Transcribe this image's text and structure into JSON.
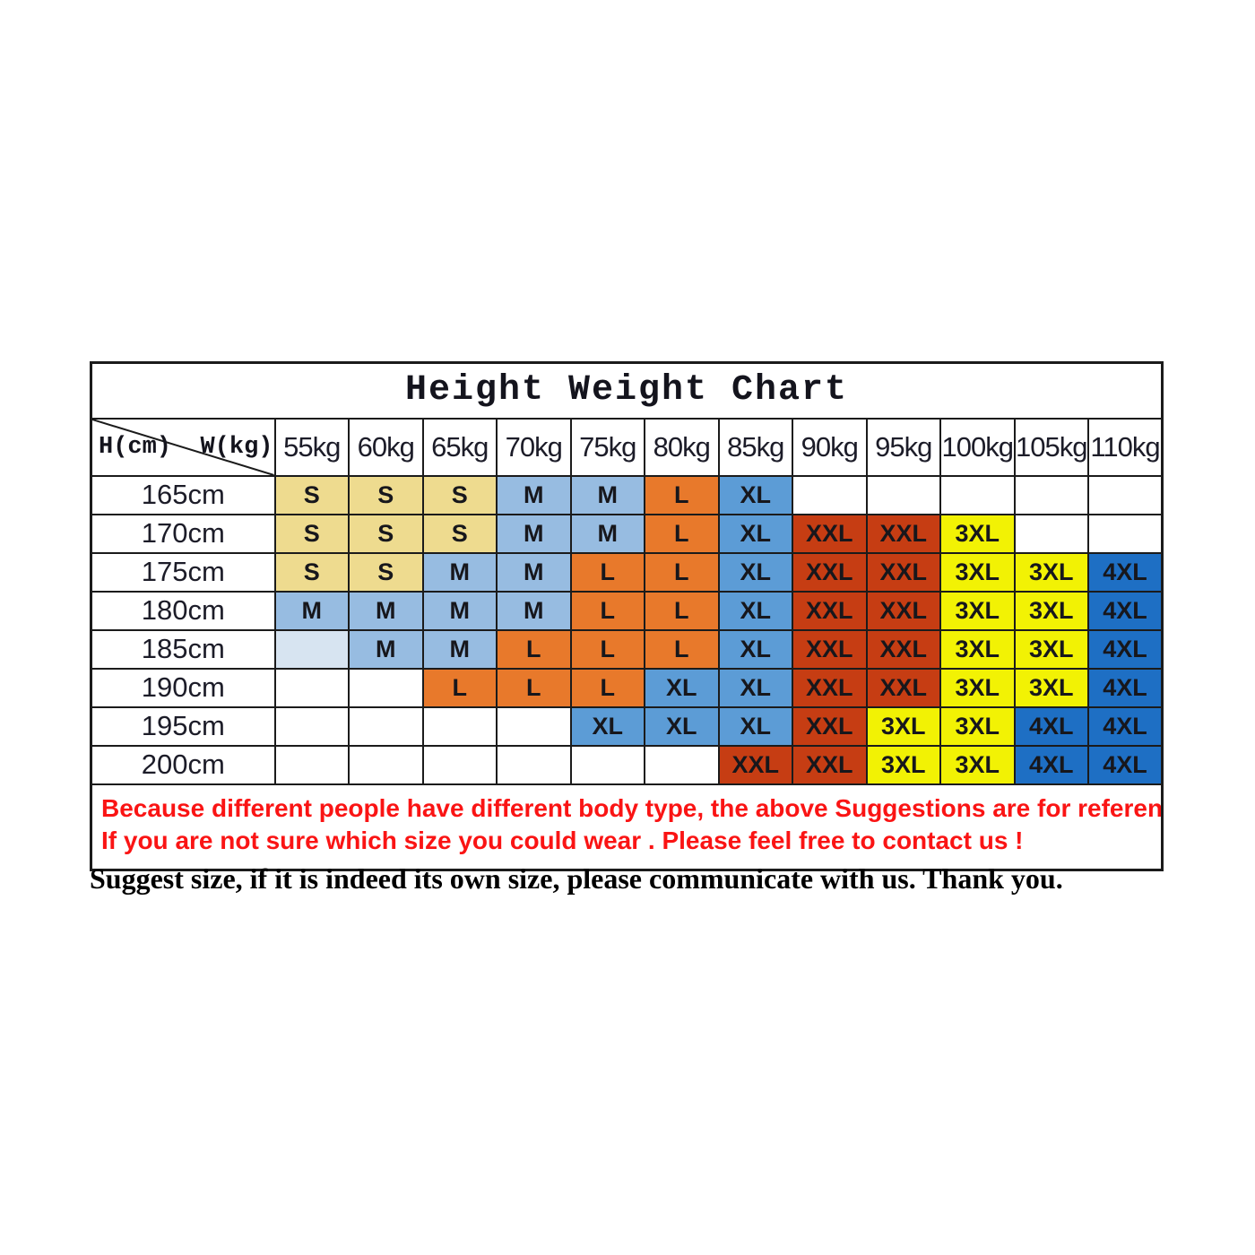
{
  "chart_data": {
    "type": "table",
    "title": "Height Weight Chart",
    "row_axis_label": "H(cm)",
    "col_axis_label": "W(kg)",
    "columns": [
      "55kg",
      "60kg",
      "65kg",
      "70kg",
      "75kg",
      "80kg",
      "85kg",
      "90kg",
      "95kg",
      "100kg",
      "105kg",
      "110kg"
    ],
    "rows": [
      {
        "label": "165cm",
        "cells": [
          "S",
          "S",
          "S",
          "M",
          "M",
          "L",
          "XL",
          "",
          "",
          "",
          "",
          ""
        ]
      },
      {
        "label": "170cm",
        "cells": [
          "S",
          "S",
          "S",
          "M",
          "M",
          "L",
          "XL",
          "XXL",
          "XXL",
          "3XL",
          "",
          ""
        ]
      },
      {
        "label": "175cm",
        "cells": [
          "S",
          "S",
          "M",
          "M",
          "L",
          "L",
          "XL",
          "XXL",
          "XXL",
          "3XL",
          "3XL",
          "4XL"
        ]
      },
      {
        "label": "180cm",
        "cells": [
          "M",
          "M",
          "M",
          "M",
          "L",
          "L",
          "XL",
          "XXL",
          "XXL",
          "3XL",
          "3XL",
          "4XL"
        ]
      },
      {
        "label": "185cm",
        "cells": [
          {
            "text": "",
            "bg": "#D7E4F1"
          },
          "M",
          "M",
          "L",
          "L",
          "L",
          "XL",
          "XXL",
          "XXL",
          "3XL",
          "3XL",
          "4XL"
        ]
      },
      {
        "label": "190cm",
        "cells": [
          "",
          "",
          "L",
          "L",
          "L",
          "XL",
          "XL",
          "XXL",
          "XXL",
          "3XL",
          "3XL",
          "4XL"
        ]
      },
      {
        "label": "195cm",
        "cells": [
          "",
          "",
          "",
          "",
          "XL",
          "XL",
          "XL",
          "XXL",
          "3XL",
          "3XL",
          "4XL",
          "4XL"
        ]
      },
      {
        "label": "200cm",
        "cells": [
          "",
          "",
          "",
          "",
          "",
          "",
          "XXL",
          "XXL",
          "3XL",
          "3XL",
          "4XL",
          "4XL"
        ]
      }
    ],
    "size_colors": {
      "S": "#EEDB8F",
      "M": "#97BCE1",
      "L": "#E8792B",
      "XL": "#5C9CD6",
      "XXL": "#C63D13",
      "3XL": "#F2F204",
      "4XL": "#1E6FC4"
    },
    "empty_highlight_color": "#D7E4F1",
    "grid_color": "#1b1b1b"
  },
  "notice": {
    "color": "#FA1414",
    "lines": [
      "Because different people have different body type, the above Suggestions are for reference only !",
      "If you are not sure which size you could wear . Please feel free to contact us !"
    ]
  },
  "footer_note": "Suggest size, if it is indeed its own size, please communicate with us. Thank you."
}
